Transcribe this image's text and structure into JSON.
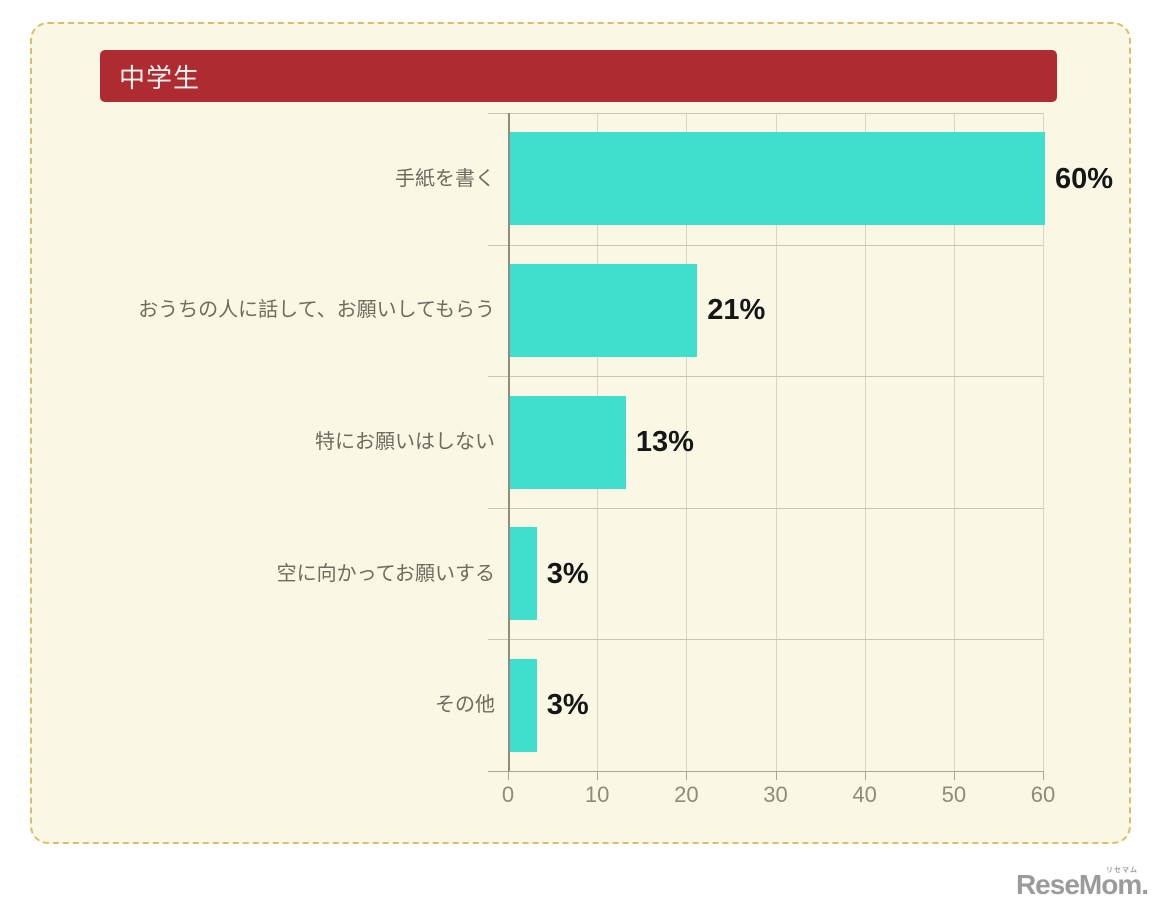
{
  "frame": {
    "background": "#FAF7E4",
    "border_color": "#D9BE6B"
  },
  "header": {
    "title": "中学生",
    "background": "#AE2B31",
    "text_color": "#FBF3EF"
  },
  "chart_data": {
    "type": "bar",
    "orientation": "horizontal",
    "title": "中学生",
    "categories": [
      "手紙を書く",
      "おうちの人に話して、お願いしてもらう",
      "特にお願いはしない",
      "空に向かってお願いする",
      "その他"
    ],
    "values": [
      60,
      21,
      13,
      3,
      3
    ],
    "value_labels": [
      "60%",
      "21%",
      "13%",
      "3%",
      "3%"
    ],
    "x_ticks": [
      0,
      10,
      20,
      30,
      40,
      50,
      60
    ],
    "xlim": [
      0,
      60
    ],
    "grid": true,
    "legend": "none",
    "bar_color": "#40DECD",
    "value_label_color": "#161616",
    "category_label_color": "#6E6C5F",
    "tick_label_color": "#8D8B7E"
  },
  "footer": {
    "logo_text": "ReseMom.",
    "logo_ruby": "リセマム"
  }
}
